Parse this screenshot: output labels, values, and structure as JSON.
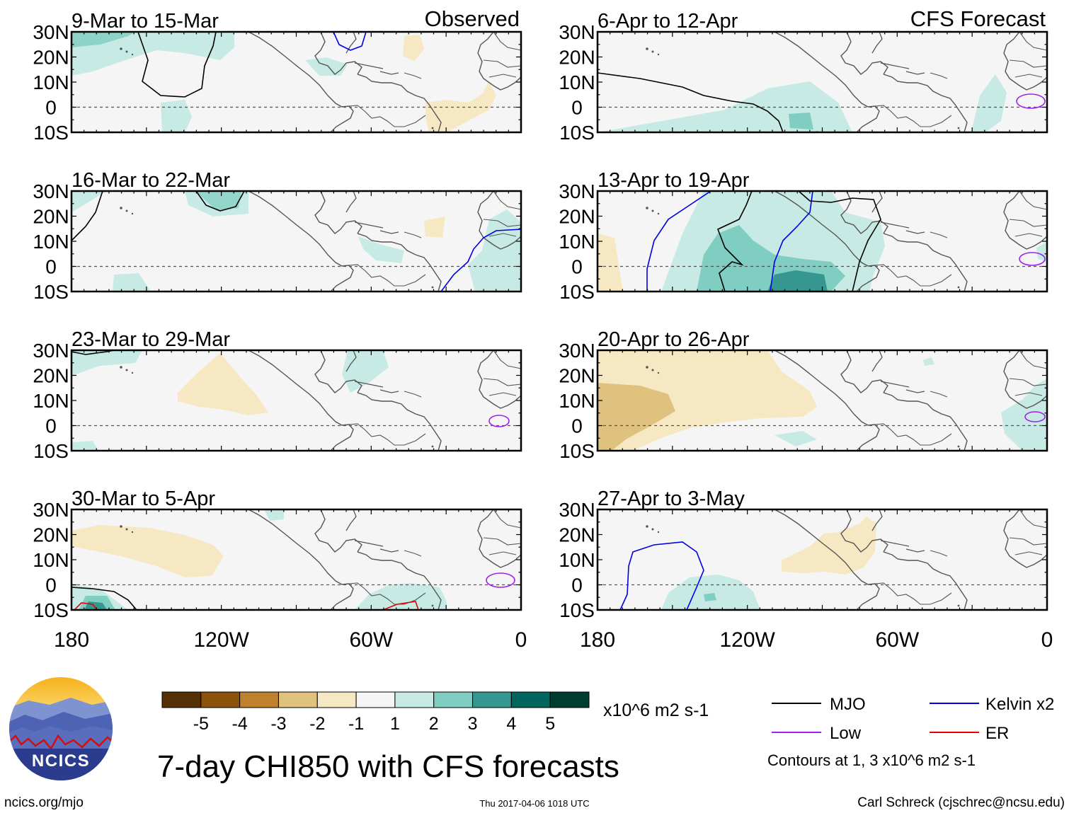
{
  "figure": {
    "title": "7-day CHI850 with CFS forecasts",
    "website": "ncics.org/mjo",
    "timestamp": "Thu 2017-04-06 1018 UTC",
    "author": "Carl Schreck (cjschrec@ncsu.edu)",
    "logo_text": "NCICS"
  },
  "columns": {
    "left_label": "Observed",
    "right_label": "CFS Forecast"
  },
  "axes": {
    "lat_labels": [
      "30N",
      "20N",
      "10N",
      "0",
      "10S"
    ],
    "lon_labels": [
      "180",
      "120W",
      "60W",
      "0"
    ]
  },
  "panels": [
    {
      "id": "p1",
      "label": "9-Mar to 15-Mar"
    },
    {
      "id": "p2",
      "label": "16-Mar to 22-Mar"
    },
    {
      "id": "p3",
      "label": "23-Mar to 29-Mar"
    },
    {
      "id": "p4",
      "label": "30-Mar to 5-Apr"
    },
    {
      "id": "p5",
      "label": "6-Apr to 12-Apr"
    },
    {
      "id": "p6",
      "label": "13-Apr to 19-Apr"
    },
    {
      "id": "p7",
      "label": "20-Apr to 26-Apr"
    },
    {
      "id": "p8",
      "label": "27-Apr to 3-May"
    }
  ],
  "colorbar": {
    "units": "x10^6 m2 s-1",
    "tick_labels": [
      "-5",
      "-4",
      "-3",
      "-2",
      "-1",
      "1",
      "2",
      "3",
      "4",
      "5"
    ],
    "colors": [
      "#543005",
      "#8c510a",
      "#bf812d",
      "#dfc27d",
      "#f6e8c3",
      "#f5f5f5",
      "#c7eae5",
      "#80cdc1",
      "#35978f",
      "#01665e",
      "#003c30"
    ]
  },
  "legend": {
    "items": [
      {
        "label": "MJO",
        "color": "#000000"
      },
      {
        "label": "Kelvin x2",
        "color": "#0000e6"
      },
      {
        "label": "Low",
        "color": "#a020f0"
      },
      {
        "label": "ER",
        "color": "#e60000"
      }
    ],
    "note": "Contours at 1, 3 x10^6 m2 s-1"
  }
}
